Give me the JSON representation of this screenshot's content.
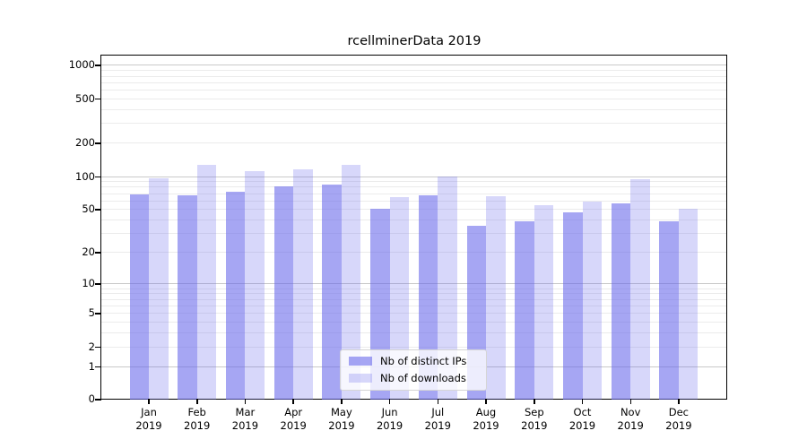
{
  "title": "rcellminerData 2019",
  "legend": {
    "items": [
      {
        "label": "Nb of distinct IPs",
        "color": "rgba(102,102,235,0.58)"
      },
      {
        "label": "Nb of downloads",
        "color": "rgba(102,102,235,0.26)"
      }
    ]
  },
  "chart_data": {
    "type": "bar",
    "title": "rcellminerData 2019",
    "categories": [
      {
        "month": "Jan",
        "year": "2019"
      },
      {
        "month": "Feb",
        "year": "2019"
      },
      {
        "month": "Mar",
        "year": "2019"
      },
      {
        "month": "Apr",
        "year": "2019"
      },
      {
        "month": "May",
        "year": "2019"
      },
      {
        "month": "Jun",
        "year": "2019"
      },
      {
        "month": "Jul",
        "year": "2019"
      },
      {
        "month": "Aug",
        "year": "2019"
      },
      {
        "month": "Sep",
        "year": "2019"
      },
      {
        "month": "Oct",
        "year": "2019"
      },
      {
        "month": "Nov",
        "year": "2019"
      },
      {
        "month": "Dec",
        "year": "2019"
      }
    ],
    "series": [
      {
        "name": "Nb of distinct IPs",
        "color": "rgba(102,102,235,0.58)",
        "values": [
          68,
          67,
          72,
          80,
          84,
          50,
          67,
          35,
          39,
          47,
          56,
          39
        ]
      },
      {
        "name": "Nb of downloads",
        "color": "rgba(102,102,235,0.26)",
        "values": [
          95,
          127,
          110,
          116,
          127,
          64,
          100,
          66,
          54,
          59,
          94,
          50
        ]
      }
    ],
    "yscale": "log10(1+x)",
    "yticks": [
      0,
      1,
      2,
      5,
      10,
      20,
      50,
      100,
      200,
      500,
      1000
    ],
    "ylim": [
      0,
      1200
    ],
    "xlabel": "",
    "ylabel": "",
    "grid": true,
    "legend_position": "lower center"
  }
}
